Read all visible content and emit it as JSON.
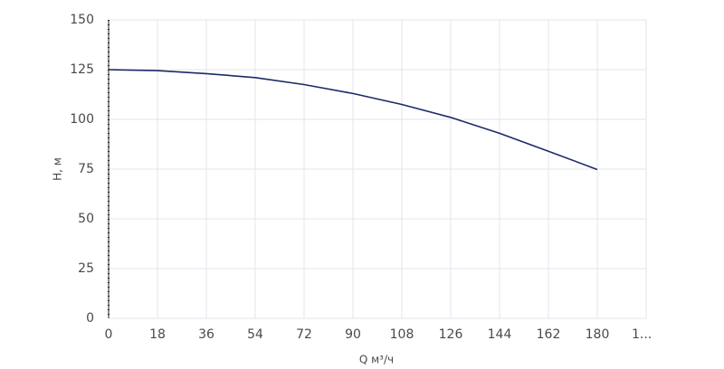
{
  "chart_data": {
    "type": "line",
    "x_label": "Q м³/ч",
    "y_label": "H, м",
    "x": [
      0,
      18,
      36,
      54,
      72,
      90,
      108,
      126,
      144,
      162,
      180
    ],
    "series": [
      {
        "name": "H",
        "color": "#1b2a66",
        "values": [
          125,
          124.5,
          123,
          121,
          117.5,
          113,
          107.5,
          101,
          93,
          84,
          74.8
        ]
      }
    ],
    "xlim": [
      0,
      198
    ],
    "ylim": [
      0,
      150
    ],
    "xticks": [
      0,
      18,
      36,
      54,
      72,
      90,
      108,
      126,
      144,
      162,
      180,
      {
        "value": 198,
        "label": "1..."
      }
    ],
    "yticks": [
      0,
      25,
      50,
      75,
      100,
      125,
      150
    ],
    "grid": true
  }
}
